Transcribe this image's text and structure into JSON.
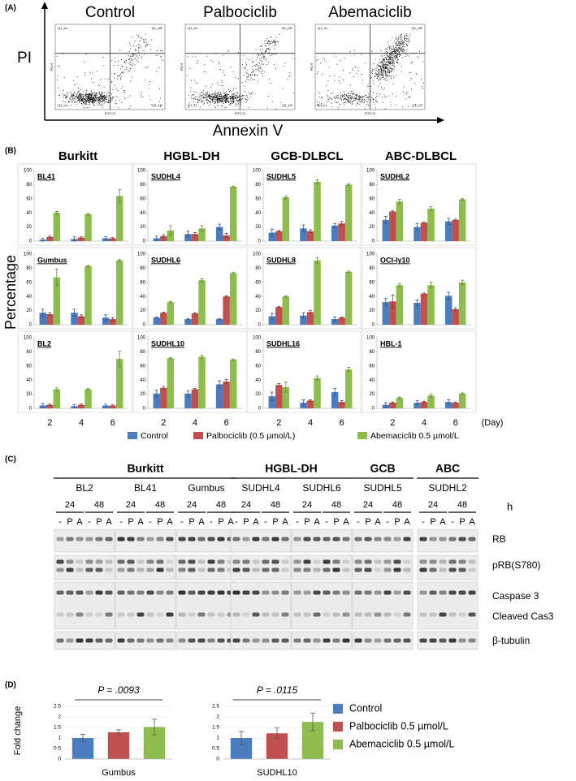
{
  "panel_a": {
    "label": "(A)",
    "plots": [
      "Control",
      "Palbociclib",
      "Abemaciclib"
    ],
    "ylabel": "PI",
    "xlabel": "Annexin V",
    "quadrant_labels": [
      "Q1_UL",
      "Q1_UR",
      "Q1_LL",
      "Q1_LR"
    ],
    "inner_xlabel": "FITC-H",
    "inner_ylabel": "PE-H"
  },
  "panel_b": {
    "label": "(B)",
    "ylabel": "Percentage",
    "categories": [
      2,
      4,
      6
    ],
    "x_unit": "(Day)",
    "ylim": [
      0,
      100
    ],
    "yticks": [
      0,
      20,
      40,
      60,
      80,
      100
    ],
    "groups": [
      {
        "name": "Burkitt",
        "color": "#e8202a"
      },
      {
        "name": "HGBL-DH",
        "color": "#e0a400"
      },
      {
        "name": "GCB-DLBCL",
        "color": "#1fb1e3"
      },
      {
        "name": "ABC-DLBCL",
        "color": "#19a64a"
      }
    ],
    "series": [
      {
        "name": "Control",
        "color": "#4a7cc0"
      },
      {
        "name": "Palbociclib (0.5 µmol/L)",
        "color": "#c0504d"
      },
      {
        "name": "Abemaciclib  0.5 µmol/L",
        "color": "#8dbd4c"
      }
    ],
    "charts": [
      {
        "title": "BL41",
        "values": [
          [
            2,
            3,
            4
          ],
          [
            6,
            5,
            4
          ],
          [
            40,
            38,
            64
          ]
        ],
        "errors": [
          [
            2,
            3,
            2
          ],
          [
            1,
            1,
            1
          ],
          [
            2,
            1,
            9
          ]
        ]
      },
      {
        "title": "SUDHL4",
        "values": [
          [
            4,
            10,
            20
          ],
          [
            7,
            10,
            8
          ],
          [
            15,
            18,
            77
          ]
        ],
        "errors": [
          [
            3,
            4,
            4
          ],
          [
            2,
            2,
            3
          ],
          [
            7,
            4,
            1
          ]
        ]
      },
      {
        "title": "SUDHL5",
        "values": [
          [
            12,
            18,
            22
          ],
          [
            14,
            14,
            25
          ],
          [
            62,
            84,
            80
          ]
        ],
        "errors": [
          [
            5,
            5,
            3
          ],
          [
            1,
            2,
            3
          ],
          [
            2,
            3,
            1
          ]
        ]
      },
      {
        "title": "SUDHL2",
        "values": [
          [
            30,
            20,
            28
          ],
          [
            42,
            26,
            30
          ],
          [
            56,
            46,
            59
          ]
        ],
        "errors": [
          [
            5,
            5,
            4
          ],
          [
            1,
            1,
            1
          ],
          [
            3,
            3,
            1
          ]
        ]
      },
      {
        "title": "Gumbus",
        "values": [
          [
            17,
            17,
            10
          ],
          [
            15,
            12,
            8
          ],
          [
            67,
            83,
            91
          ]
        ],
        "errors": [
          [
            5,
            5,
            4
          ],
          [
            2,
            2,
            2
          ],
          [
            12,
            1,
            1
          ]
        ]
      },
      {
        "title": "SUDHL6",
        "values": [
          [
            10,
            8,
            8
          ],
          [
            17,
            16,
            40
          ],
          [
            32,
            63,
            73
          ]
        ],
        "errors": [
          [
            1,
            1,
            1
          ],
          [
            1,
            1,
            1
          ],
          [
            1,
            2,
            1
          ]
        ]
      },
      {
        "title": "SUDHL8",
        "values": [
          [
            12,
            13,
            8
          ],
          [
            25,
            18,
            10
          ],
          [
            40,
            91,
            75
          ]
        ],
        "errors": [
          [
            4,
            4,
            3
          ],
          [
            1,
            2,
            1
          ],
          [
            1,
            4,
            1
          ]
        ]
      },
      {
        "title": "OCI-ly10",
        "values": [
          [
            32,
            31,
            41
          ],
          [
            33,
            44,
            22
          ],
          [
            56,
            56,
            60
          ]
        ],
        "errors": [
          [
            5,
            4,
            5
          ],
          [
            9,
            1,
            2
          ],
          [
            2,
            4,
            3
          ]
        ]
      },
      {
        "title": "BL2",
        "values": [
          [
            4,
            3,
            4
          ],
          [
            5,
            5,
            4
          ],
          [
            27,
            27,
            70
          ]
        ],
        "errors": [
          [
            3,
            2,
            2
          ],
          [
            1,
            1,
            1
          ],
          [
            2,
            1,
            11
          ]
        ]
      },
      {
        "title": "SUDHL10",
        "values": [
          [
            21,
            21,
            34
          ],
          [
            29,
            27,
            38
          ],
          [
            71,
            73,
            69
          ]
        ],
        "errors": [
          [
            5,
            4,
            5
          ],
          [
            2,
            1,
            3
          ],
          [
            1,
            2,
            1
          ]
        ]
      },
      {
        "title": "SUDHL16",
        "values": [
          [
            17,
            8,
            23
          ],
          [
            33,
            11,
            9
          ],
          [
            30,
            43,
            55
          ]
        ],
        "errors": [
          [
            6,
            4,
            5
          ],
          [
            2,
            1,
            2
          ],
          [
            7,
            3,
            3
          ]
        ]
      },
      {
        "title": "HBL-1",
        "values": [
          [
            5,
            8,
            9
          ],
          [
            8,
            9,
            8
          ],
          [
            15,
            18,
            21
          ]
        ],
        "errors": [
          [
            3,
            3,
            3
          ],
          [
            1,
            1,
            1
          ],
          [
            1,
            2,
            1
          ]
        ]
      }
    ]
  },
  "panel_c": {
    "label": "(C)",
    "groups": [
      {
        "name": "Burkitt",
        "cell_lines": [
          "BL2",
          "BL41",
          "Gumbus"
        ]
      },
      {
        "name": "HGBL-DH",
        "cell_lines": [
          "SUDHL4",
          "SUDHL6"
        ]
      },
      {
        "name": "GCB",
        "cell_lines": [
          "SUDHL5"
        ]
      },
      {
        "name": "ABC",
        "cell_lines": [
          "SUDHL2"
        ]
      }
    ],
    "timepoints": [
      24,
      48
    ],
    "time_unit": "h",
    "lanes": [
      "-",
      "P",
      "A"
    ],
    "proteins": [
      "RB",
      "pRB(S780)",
      "Caspase 3",
      "Cleaved Cas3",
      "β-tubulin"
    ]
  },
  "panel_d": {
    "label": "(D)",
    "ylabel": "Fold change",
    "ylim": [
      0,
      2.5
    ],
    "yticks": [
      0,
      0.5,
      1,
      1.5,
      2,
      2.5
    ],
    "series": [
      {
        "name": "Control",
        "color": "#4a7cc0"
      },
      {
        "name": "Palbociclib  0.5 µmol/L",
        "color": "#c0504d"
      },
      {
        "name": "Abemaciclib  0.5 µmol/L",
        "color": "#8dbd4c"
      }
    ],
    "charts": [
      {
        "title": "Gumbus",
        "p_value": "P = .0093",
        "values": [
          1.0,
          1.27,
          1.52
        ],
        "errors": [
          0.17,
          0.12,
          0.37
        ]
      },
      {
        "title": "SUDHL10",
        "p_value": "P = .0115",
        "values": [
          1.0,
          1.22,
          1.76
        ],
        "errors": [
          0.3,
          0.25,
          0.42
        ]
      }
    ]
  }
}
